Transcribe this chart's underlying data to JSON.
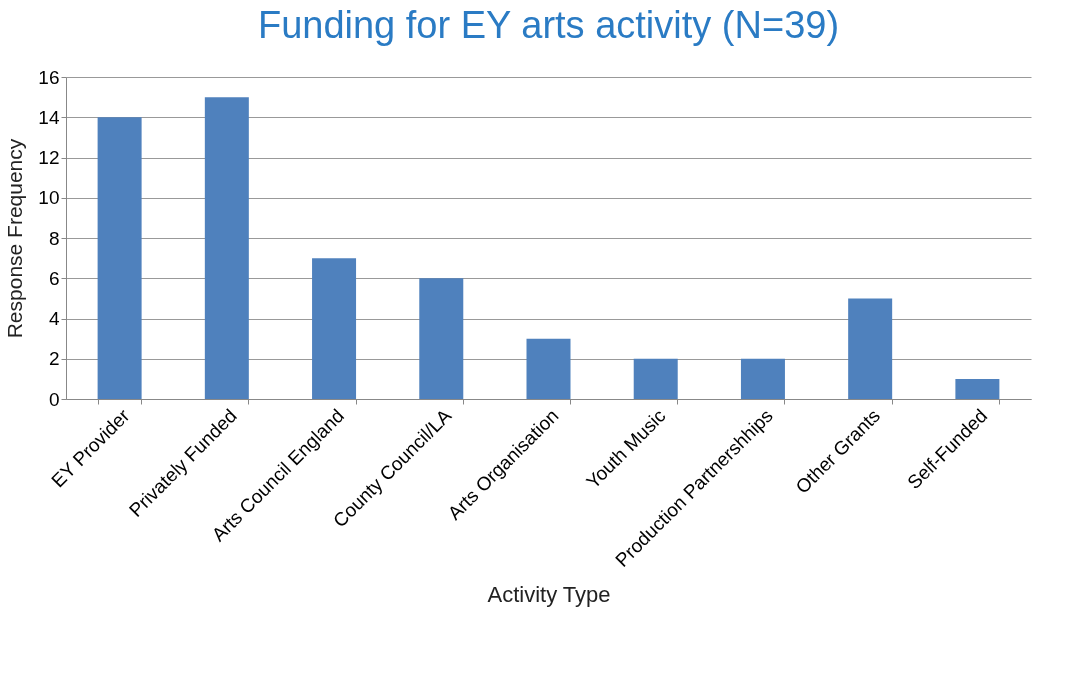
{
  "chart_data": {
    "type": "bar",
    "title": "Funding for EY arts activity (N=39)",
    "xlabel": "Activity Type",
    "ylabel": "Response Frequency",
    "categories": [
      "EY Provider",
      "Privately Funded",
      "Arts Council England",
      "County Council/LA",
      "Arts Organisation",
      "Youth Music",
      "Production Partnershhips",
      "Other Grants",
      "Self-Funded"
    ],
    "values": [
      14,
      15,
      7,
      6,
      3,
      2,
      2,
      5,
      1
    ],
    "color": "#4f81bd",
    "ylim": [
      0,
      16
    ],
    "yticks": [
      0,
      2,
      4,
      6,
      8,
      10,
      12,
      14,
      16
    ],
    "grid": "y"
  }
}
